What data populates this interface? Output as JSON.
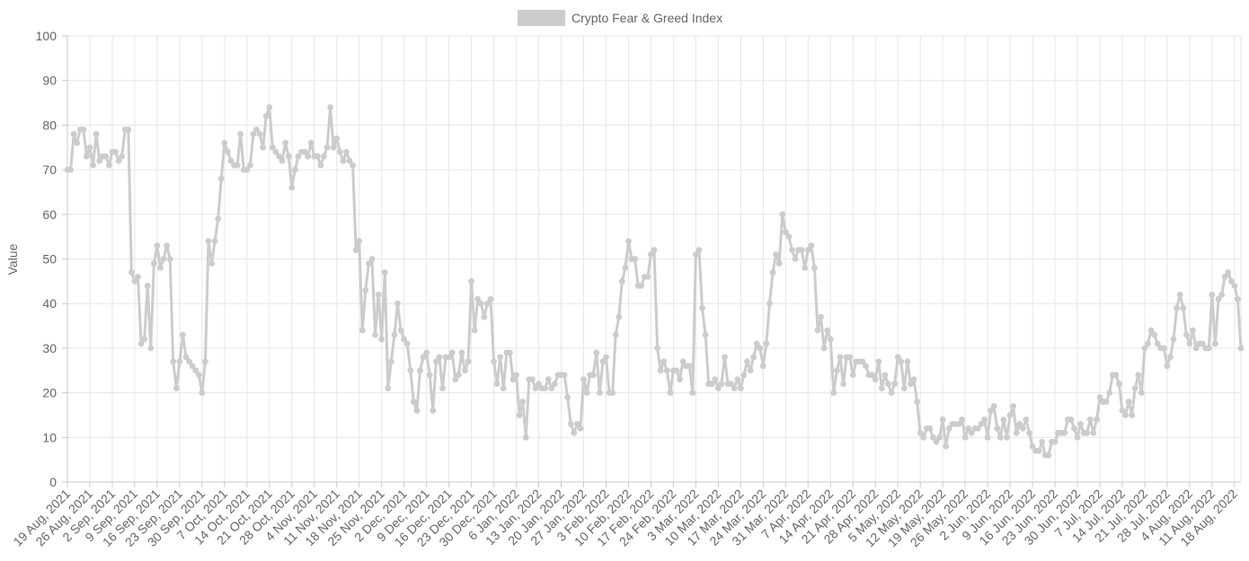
{
  "chart_data": {
    "type": "line",
    "title": "",
    "xlabel": "",
    "ylabel": "Value",
    "ylim": [
      0,
      100
    ],
    "yticks": [
      0,
      10,
      20,
      30,
      40,
      50,
      60,
      70,
      80,
      90,
      100
    ],
    "grid": true,
    "legend_position": "top",
    "start_date": "2021-08-19",
    "x_tick_labels": [
      "19 Aug, 2021",
      "26 Aug, 2021",
      "2 Sep, 2021",
      "9 Sep, 2021",
      "16 Sep, 2021",
      "23 Sep, 2021",
      "30 Sep, 2021",
      "7 Oct, 2021",
      "14 Oct, 2021",
      "21 Oct, 2021",
      "28 Oct, 2021",
      "4 Nov, 2021",
      "11 Nov, 2021",
      "18 Nov, 2021",
      "25 Nov, 2021",
      "2 Dec, 2021",
      "9 Dec, 2021",
      "16 Dec, 2021",
      "23 Dec, 2021",
      "30 Dec, 2021",
      "6 Jan, 2022",
      "13 Jan, 2022",
      "20 Jan, 2022",
      "27 Jan, 2022",
      "3 Feb, 2022",
      "10 Feb, 2022",
      "17 Feb, 2022",
      "24 Feb, 2022",
      "3 Mar, 2022",
      "10 Mar, 2022",
      "17 Mar, 2022",
      "24 Mar, 2022",
      "31 Mar, 2022",
      "7 Apr, 2022",
      "14 Apr, 2022",
      "21 Apr, 2022",
      "28 Apr, 2022",
      "5 May, 2022",
      "12 May, 2022",
      "19 May, 2022",
      "26 May, 2022",
      "2 Jun, 2022",
      "9 Jun, 2022",
      "16 Jun, 2022",
      "23 Jun, 2022",
      "30 Jun, 2022",
      "7 Jul, 2022",
      "14 Jul, 2022",
      "21 Jul, 2022",
      "28 Jul, 2022",
      "4 Aug, 2022",
      "11 Aug, 2022",
      "18 Aug, 2022"
    ],
    "series": [
      {
        "name": "Crypto Fear & Greed Index",
        "color": "#cccccc",
        "values": [
          70,
          70,
          78,
          76,
          79,
          79,
          73,
          75,
          71,
          78,
          72,
          73,
          73,
          71,
          74,
          74,
          72,
          73,
          79,
          79,
          47,
          45,
          46,
          31,
          32,
          44,
          30,
          49,
          53,
          48,
          50,
          53,
          50,
          27,
          21,
          27,
          33,
          28,
          27,
          26,
          25,
          24,
          20,
          27,
          54,
          49,
          54,
          59,
          68,
          76,
          74,
          72,
          71,
          71,
          78,
          70,
          70,
          71,
          78,
          79,
          78,
          75,
          82,
          84,
          75,
          74,
          73,
          72,
          76,
          73,
          66,
          70,
          73,
          74,
          74,
          73,
          76,
          73,
          73,
          71,
          73,
          75,
          84,
          75,
          77,
          74,
          72,
          74,
          72,
          71,
          52,
          54,
          34,
          43,
          49,
          50,
          33,
          42,
          32,
          47,
          21,
          27,
          33,
          40,
          34,
          32,
          31,
          25,
          18,
          16,
          25,
          28,
          29,
          24,
          16,
          27,
          28,
          21,
          28,
          28,
          29,
          23,
          24,
          29,
          25,
          27,
          45,
          34,
          41,
          40,
          37,
          40,
          41,
          27,
          22,
          28,
          21,
          29,
          29,
          23,
          24,
          15,
          18,
          10,
          23,
          23,
          21,
          22,
          21,
          21,
          23,
          21,
          22,
          24,
          24,
          24,
          19,
          13,
          11,
          13,
          12,
          23,
          20,
          24,
          24,
          29,
          20,
          27,
          28,
          20,
          20,
          33,
          37,
          45,
          48,
          54,
          50,
          50,
          44,
          44,
          46,
          46,
          51,
          52,
          30,
          25,
          27,
          25,
          20,
          25,
          25,
          23,
          27,
          26,
          26,
          20,
          51,
          52,
          39,
          33,
          22,
          22,
          23,
          21,
          22,
          28,
          22,
          22,
          21,
          23,
          21,
          24,
          27,
          25,
          28,
          31,
          30,
          26,
          31,
          40,
          47,
          51,
          49,
          60,
          56,
          55,
          52,
          50,
          52,
          52,
          48,
          52,
          53,
          48,
          34,
          37,
          30,
          34,
          32,
          20,
          25,
          28,
          22,
          28,
          28,
          24,
          27,
          27,
          27,
          26,
          24,
          24,
          23,
          27,
          21,
          24,
          22,
          20,
          22,
          28,
          27,
          21,
          27,
          22,
          23,
          18,
          11,
          10,
          12,
          12,
          10,
          9,
          10,
          14,
          8,
          12,
          13,
          13,
          13,
          14,
          10,
          12,
          11,
          12,
          12,
          13,
          14,
          10,
          16,
          17,
          12,
          10,
          14,
          10,
          15,
          17,
          11,
          13,
          12,
          14,
          11,
          8,
          7,
          7,
          9,
          6,
          6,
          9,
          9,
          11,
          11,
          11,
          14,
          14,
          12,
          10,
          13,
          11,
          11,
          14,
          11,
          14,
          19,
          18,
          18,
          20,
          24,
          24,
          22,
          16,
          15,
          18,
          15,
          21,
          24,
          20,
          30,
          31,
          34,
          33,
          31,
          30,
          30,
          26,
          28,
          32,
          39,
          42,
          39,
          33,
          31,
          34,
          30,
          31,
          31,
          30,
          30,
          42,
          31,
          41,
          42,
          46,
          47,
          45,
          44,
          41,
          30
        ]
      }
    ]
  }
}
